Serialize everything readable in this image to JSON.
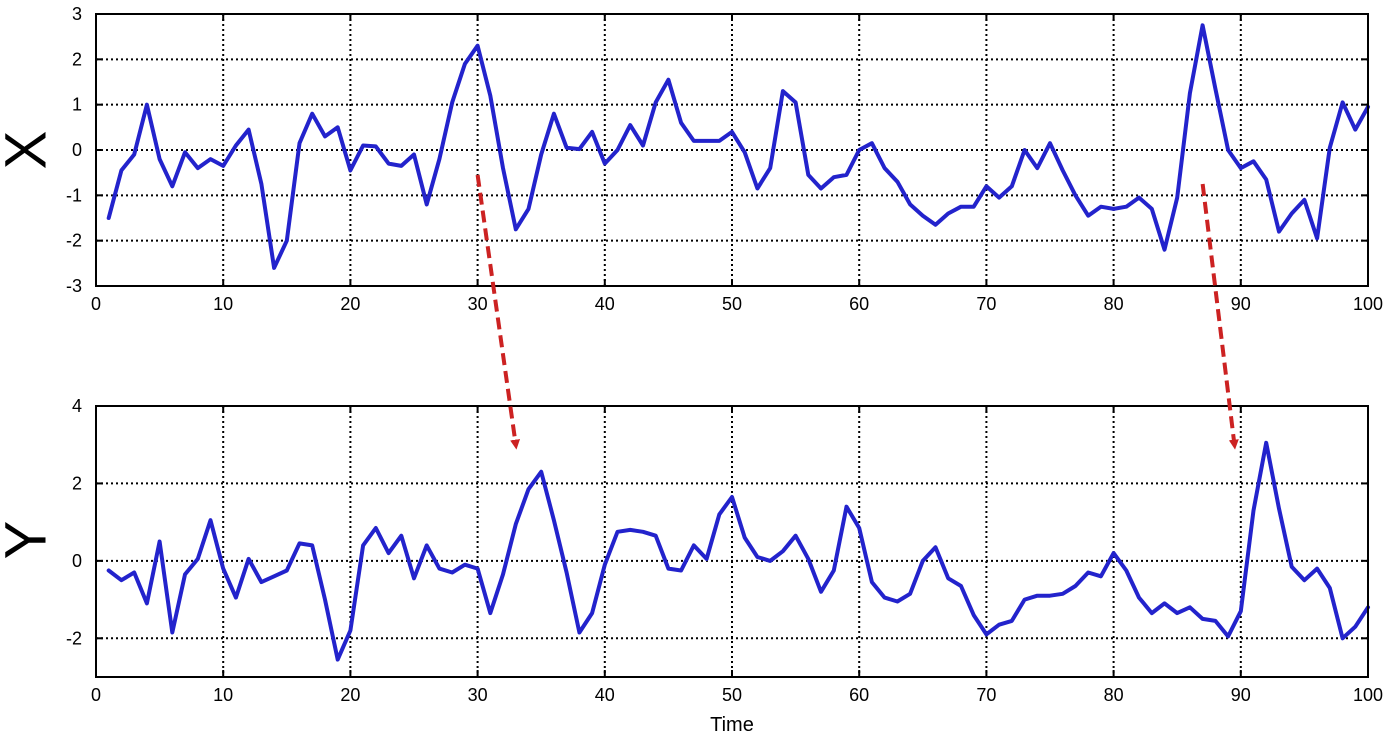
{
  "chart_data": [
    {
      "type": "line",
      "title": "",
      "ylabel": "X",
      "xlabel": "",
      "xlim": [
        0,
        100
      ],
      "ylim": [
        -3,
        3
      ],
      "xticks": [
        0,
        10,
        20,
        30,
        40,
        50,
        60,
        70,
        80,
        90,
        100
      ],
      "yticks": [
        -3,
        -2,
        -1,
        0,
        1,
        2,
        3
      ],
      "grid": true,
      "series": [
        {
          "color": "#2323cc",
          "x": [
            1,
            2,
            3,
            4,
            5,
            6,
            7,
            8,
            9,
            10,
            11,
            12,
            13,
            14,
            15,
            16,
            17,
            18,
            19,
            20,
            21,
            22,
            23,
            24,
            25,
            26,
            27,
            28,
            29,
            30,
            31,
            32,
            33,
            34,
            35,
            36,
            37,
            38,
            39,
            40,
            41,
            42,
            43,
            44,
            45,
            46,
            47,
            48,
            49,
            50,
            51,
            52,
            53,
            54,
            55,
            56,
            57,
            58,
            59,
            60,
            61,
            62,
            63,
            64,
            65,
            66,
            67,
            68,
            69,
            70,
            71,
            72,
            73,
            74,
            75,
            76,
            77,
            78,
            79,
            80,
            81,
            82,
            83,
            84,
            85,
            86,
            87,
            88,
            89,
            90,
            91,
            92,
            93,
            94,
            95,
            96,
            97,
            98,
            99,
            100
          ],
          "values": [
            -1.5,
            -0.45,
            -0.1,
            1.0,
            -0.2,
            -0.8,
            -0.05,
            -0.4,
            -0.2,
            -0.35,
            0.1,
            0.45,
            -0.75,
            -2.6,
            -2.0,
            0.15,
            0.8,
            0.3,
            0.5,
            -0.45,
            0.1,
            0.08,
            -0.3,
            -0.35,
            -0.1,
            -1.2,
            -0.2,
            1.05,
            1.9,
            2.3,
            1.2,
            -0.4,
            -1.75,
            -1.3,
            -0.1,
            0.8,
            0.05,
            0.02,
            0.4,
            -0.3,
            0.0,
            0.55,
            0.1,
            1.05,
            1.55,
            0.6,
            0.2,
            0.2,
            0.2,
            0.4,
            -0.05,
            -0.85,
            -0.4,
            1.3,
            1.05,
            -0.55,
            -0.85,
            -0.6,
            -0.55,
            0.0,
            0.15,
            -0.4,
            -0.7,
            -1.2,
            -1.45,
            -1.65,
            -1.4,
            -1.25,
            -1.25,
            -0.8,
            -1.05,
            -0.8,
            0.0,
            -0.4,
            0.15,
            -0.45,
            -1.0,
            -1.45,
            -1.25,
            -1.3,
            -1.25,
            -1.05,
            -1.3,
            -2.2,
            -1.05,
            1.25,
            2.75,
            1.35,
            0.0,
            -0.4,
            -0.25,
            -0.65,
            -1.8,
            -1.4,
            -1.1,
            -1.95,
            0.05,
            1.05,
            0.45,
            0.95
          ]
        }
      ],
      "annotations": [
        {
          "type": "arrow",
          "color": "#cc2222",
          "from": [
            30,
            -0.55
          ],
          "to": [
            33,
            -6.5
          ]
        },
        {
          "type": "arrow",
          "color": "#cc2222",
          "from": [
            87,
            -0.75
          ],
          "to": [
            89.5,
            -6.5
          ]
        }
      ]
    },
    {
      "type": "line",
      "title": "",
      "ylabel": "Y",
      "xlabel": "Time",
      "xlim": [
        0,
        100
      ],
      "ylim": [
        -3,
        4
      ],
      "xticks": [
        0,
        10,
        20,
        30,
        40,
        50,
        60,
        70,
        80,
        90,
        100
      ],
      "yticks": [
        -2,
        0,
        2,
        4
      ],
      "grid": true,
      "series": [
        {
          "color": "#2323cc",
          "x": [
            1,
            2,
            3,
            4,
            5,
            6,
            7,
            8,
            9,
            10,
            11,
            12,
            13,
            14,
            15,
            16,
            17,
            18,
            19,
            20,
            21,
            22,
            23,
            24,
            25,
            26,
            27,
            28,
            29,
            30,
            31,
            32,
            33,
            34,
            35,
            36,
            37,
            38,
            39,
            40,
            41,
            42,
            43,
            44,
            45,
            46,
            47,
            48,
            49,
            50,
            51,
            52,
            53,
            54,
            55,
            56,
            57,
            58,
            59,
            60,
            61,
            62,
            63,
            64,
            65,
            66,
            67,
            68,
            69,
            70,
            71,
            72,
            73,
            74,
            75,
            76,
            77,
            78,
            79,
            80,
            81,
            82,
            83,
            84,
            85,
            86,
            87,
            88,
            89,
            90,
            91,
            92,
            93,
            94,
            95,
            96,
            97,
            98,
            99,
            100
          ],
          "values": [
            -0.25,
            -0.5,
            -0.3,
            -1.1,
            0.5,
            -1.85,
            -0.35,
            0.05,
            1.05,
            -0.2,
            -0.95,
            0.05,
            -0.55,
            -0.4,
            -0.25,
            0.45,
            0.4,
            -1.0,
            -2.55,
            -1.8,
            0.4,
            0.85,
            0.2,
            0.65,
            -0.45,
            0.4,
            -0.2,
            -0.3,
            -0.1,
            -0.2,
            -1.35,
            -0.35,
            0.95,
            1.85,
            2.3,
            1.05,
            -0.3,
            -1.85,
            -1.35,
            -0.1,
            0.75,
            0.8,
            0.75,
            0.65,
            -0.2,
            -0.25,
            0.4,
            0.05,
            1.2,
            1.65,
            0.6,
            0.1,
            0.0,
            0.25,
            0.65,
            0.05,
            -0.8,
            -0.25,
            1.4,
            0.85,
            -0.55,
            -0.95,
            -1.05,
            -0.85,
            0.0,
            0.35,
            -0.45,
            -0.65,
            -1.4,
            -1.9,
            -1.65,
            -1.55,
            -1.0,
            -0.9,
            -0.9,
            -0.85,
            -0.65,
            -0.3,
            -0.4,
            0.2,
            -0.25,
            -0.95,
            -1.35,
            -1.1,
            -1.35,
            -1.2,
            -1.5,
            -1.55,
            -1.95,
            -1.3,
            1.3,
            3.05,
            1.35,
            -0.15,
            -0.5,
            -0.2,
            -0.7,
            -2.0,
            -1.7,
            -1.2
          ]
        }
      ]
    }
  ]
}
